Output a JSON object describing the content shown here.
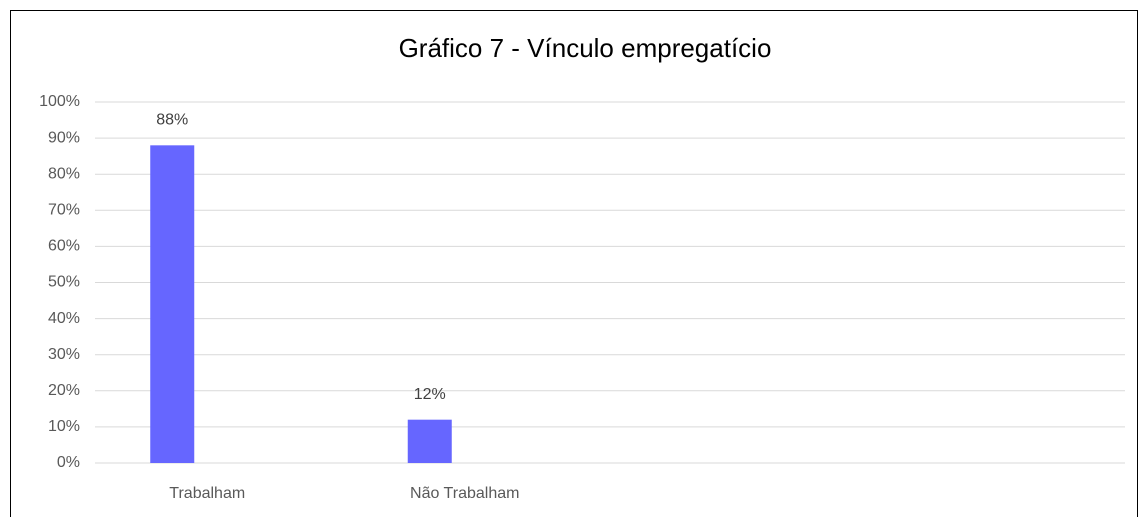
{
  "chart_data": {
    "type": "bar",
    "title": "Gráfico 7 - Vínculo empregatício",
    "categories": [
      "Trabalham",
      "Não Trabalham",
      null,
      null
    ],
    "values": [
      88,
      12,
      null,
      null
    ],
    "value_labels": [
      "88%",
      "12%",
      null,
      null
    ],
    "color": "#6666ff",
    "ylim": [
      0,
      100
    ],
    "yticks": [
      {
        "value": 0,
        "label": "0%"
      },
      {
        "value": 10,
        "label": "10%"
      },
      {
        "value": 20,
        "label": "20%"
      },
      {
        "value": 30,
        "label": "30%"
      },
      {
        "value": 40,
        "label": "40%"
      },
      {
        "value": 50,
        "label": "50%"
      },
      {
        "value": 60,
        "label": "60%"
      },
      {
        "value": 70,
        "label": "70%"
      },
      {
        "value": 80,
        "label": "80%"
      },
      {
        "value": 90,
        "label": "90%"
      },
      {
        "value": 100,
        "label": "100%"
      }
    ],
    "grid": true
  }
}
